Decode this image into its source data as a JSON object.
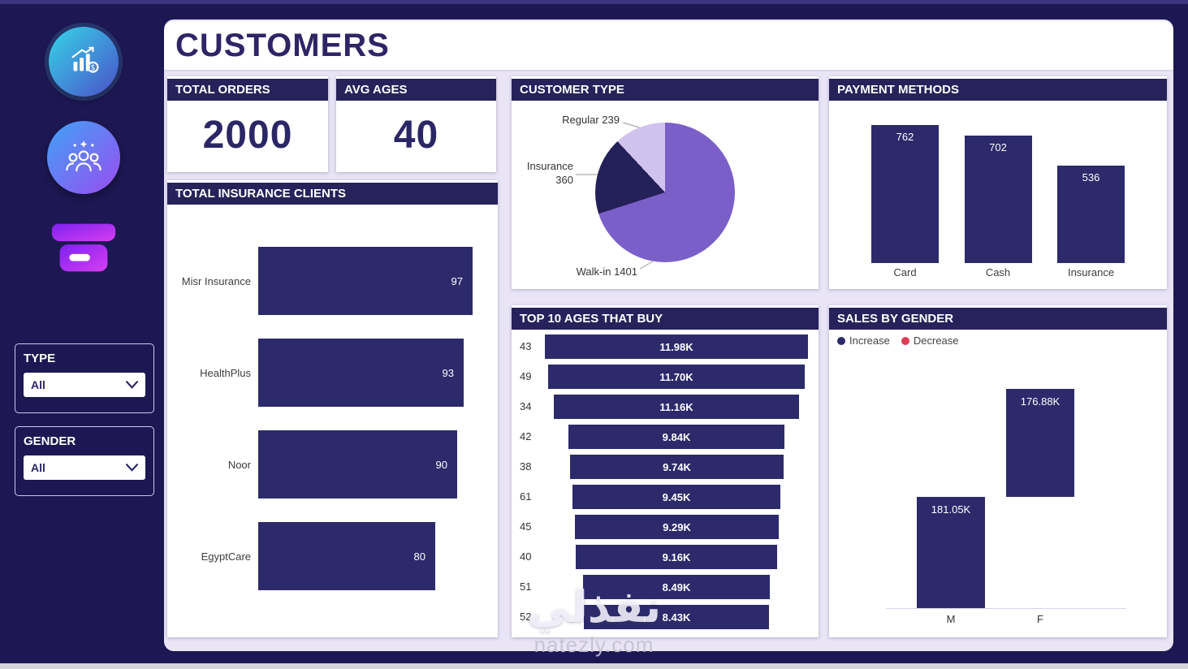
{
  "page": {
    "title": "CUSTOMERS"
  },
  "sidebar": {
    "icons": [
      "analytics",
      "customers-group",
      "store"
    ],
    "filters": [
      {
        "label": "TYPE",
        "value": "All"
      },
      {
        "label": "GENDER",
        "value": "All"
      }
    ]
  },
  "kpis": [
    {
      "label": "TOTAL ORDERS",
      "value": "2000"
    },
    {
      "label": "AVG AGES",
      "value": "40"
    }
  ],
  "chart_data": [
    {
      "type": "bar",
      "orientation": "horizontal",
      "title": "TOTAL INSURANCE CLIENTS",
      "categories": [
        "Misr Insurance",
        "HealthPlus",
        "Noor",
        "EgyptCare"
      ],
      "values": [
        97,
        93,
        90,
        80
      ],
      "xlim": [
        0,
        100
      ],
      "bar_color": "#2c2a6b"
    },
    {
      "type": "pie",
      "title": "CUSTOMER TYPE",
      "categories": [
        "Regular",
        "Insurance",
        "Walk-in"
      ],
      "values": [
        239,
        360,
        1401
      ],
      "labels": [
        "Regular 239",
        "Insurance 360",
        "Walk-in 1401"
      ],
      "colors": [
        "#cfc3ee",
        "#242058",
        "#7b5fc8"
      ],
      "slice_order": [
        2,
        1,
        0
      ],
      "start_angle": "top-clockwise"
    },
    {
      "type": "bar",
      "orientation": "vertical",
      "title": "PAYMENT METHODS",
      "categories": [
        "Card",
        "Cash",
        "Insurance"
      ],
      "values": [
        762,
        702,
        536
      ],
      "bar_color": "#2c2a6b"
    },
    {
      "type": "bar",
      "orientation": "horizontal-funnel",
      "title": "TOP 10 AGES THAT BUY",
      "categories": [
        "43",
        "49",
        "34",
        "42",
        "38",
        "61",
        "45",
        "40",
        "51",
        "52"
      ],
      "values": [
        11980,
        11700,
        11160,
        9840,
        9740,
        9450,
        9290,
        9160,
        8490,
        8430
      ],
      "value_labels": [
        "11.98K",
        "11.70K",
        "11.16K",
        "9.84K",
        "9.74K",
        "9.45K",
        "9.29K",
        "9.16K",
        "8.49K",
        "8.43K"
      ],
      "bar_color": "#2c2a6b"
    },
    {
      "type": "waterfall",
      "title": "SALES BY GENDER",
      "categories": [
        "M",
        "F"
      ],
      "values": [
        181050,
        176880
      ],
      "value_labels": [
        "181.05K",
        "176.88K"
      ],
      "legend": [
        "Increase",
        "Decrease"
      ],
      "legend_colors": [
        "#2c2a6b",
        "#e23a55"
      ],
      "legend_position": "top-left"
    }
  ],
  "watermark": {
    "arabic": "نفذلي",
    "domain": "natezly.com"
  }
}
